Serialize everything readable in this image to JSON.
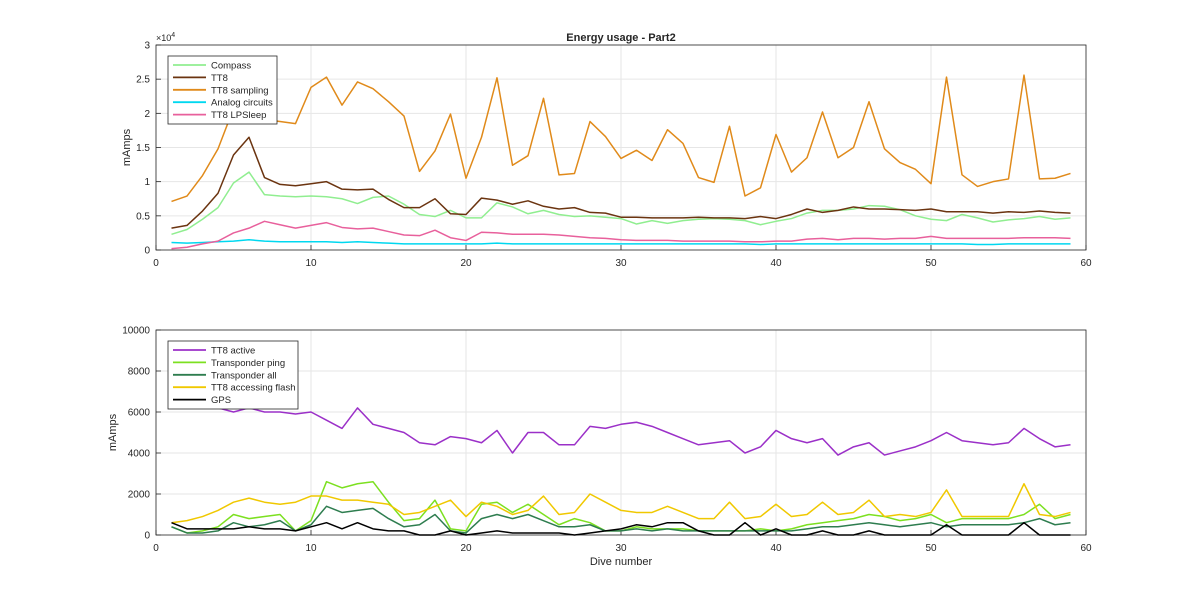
{
  "chart_data": [
    {
      "type": "line",
      "title": "Energy usage - Part2",
      "xlabel": "",
      "ylabel": "mAmps",
      "exponent_label": "×10",
      "exponent_power": "4",
      "xlim": [
        0,
        60
      ],
      "ylim": [
        0,
        30000
      ],
      "xticks": [
        0,
        10,
        20,
        30,
        40,
        50,
        60
      ],
      "yticks": [
        0,
        5000,
        10000,
        15000,
        20000,
        25000,
        30000
      ],
      "ytick_labels": [
        "0",
        "0.5",
        "1",
        "1.5",
        "2",
        "2.5",
        "3"
      ],
      "grid": true,
      "legend_position": "top-left",
      "x": [
        1,
        2,
        3,
        4,
        5,
        6,
        7,
        8,
        9,
        10,
        11,
        12,
        13,
        14,
        15,
        16,
        17,
        18,
        19,
        20,
        21,
        22,
        23,
        24,
        25,
        26,
        27,
        28,
        29,
        30,
        31,
        32,
        33,
        34,
        35,
        36,
        37,
        38,
        39,
        40,
        41,
        42,
        43,
        44,
        45,
        46,
        47,
        48,
        49,
        50,
        51,
        52,
        53,
        54,
        55,
        56,
        57,
        58,
        59
      ],
      "series": [
        {
          "name": "Compass",
          "color": "#90EE90",
          "values": [
            2300,
            3000,
            4500,
            6200,
            9800,
            11400,
            8100,
            7900,
            7800,
            7900,
            7800,
            7500,
            6800,
            7700,
            7900,
            6700,
            5200,
            4900,
            5800,
            4700,
            4700,
            6900,
            6300,
            5300,
            5800,
            5200,
            4900,
            5000,
            4800,
            4600,
            3800,
            4300,
            3900,
            4300,
            4500,
            4600,
            4500,
            4300,
            3700,
            4200,
            4600,
            5400,
            5800,
            5800,
            6000,
            6500,
            6400,
            5900,
            5000,
            4500,
            4300,
            5200,
            4700,
            4100,
            4400,
            4600,
            4900,
            4500,
            4700
          ]
        },
        {
          "name": "TT8",
          "color": "#6B3410",
          "values": [
            3200,
            3600,
            5700,
            8300,
            13900,
            16500,
            10600,
            9600,
            9400,
            9700,
            10000,
            8900,
            8800,
            8900,
            7400,
            6200,
            6200,
            7500,
            5300,
            5200,
            7600,
            7300,
            6700,
            7200,
            6400,
            6000,
            6200,
            5500,
            5400,
            4800,
            4800,
            4700,
            4700,
            4700,
            4800,
            4700,
            4700,
            4600,
            4900,
            4600,
            5200,
            6000,
            5500,
            5800,
            6300,
            6000,
            6000,
            5900,
            5800,
            6000,
            5600,
            5600,
            5600,
            5400,
            5600,
            5500,
            5700,
            5500,
            5400
          ]
        },
        {
          "name": "TT8 sampling",
          "color": "#E08A1A",
          "values": [
            7100,
            7900,
            10900,
            14800,
            20700,
            20100,
            19100,
            18800,
            18500,
            23800,
            25300,
            21200,
            24600,
            23600,
            21700,
            19600,
            11500,
            14500,
            19900,
            10500,
            16500,
            25200,
            12400,
            13800,
            22200,
            11000,
            11200,
            18800,
            16600,
            13400,
            14600,
            13100,
            17600,
            15600,
            10600,
            9900,
            18100,
            7900,
            9100,
            16900,
            11400,
            13500,
            20200,
            13500,
            15000,
            21700,
            14800,
            12800,
            11800,
            9700,
            25300,
            11000,
            9300,
            10000,
            10400,
            25600,
            10400,
            10500,
            11200
          ]
        },
        {
          "name": "Analog circuits",
          "color": "#00D8F0",
          "values": [
            1100,
            1000,
            1100,
            1200,
            1300,
            1500,
            1300,
            1200,
            1200,
            1200,
            1200,
            1100,
            1200,
            1100,
            1000,
            900,
            900,
            900,
            900,
            900,
            900,
            1000,
            900,
            900,
            900,
            900,
            900,
            900,
            900,
            900,
            900,
            900,
            900,
            900,
            900,
            900,
            900,
            900,
            800,
            900,
            900,
            900,
            900,
            900,
            900,
            900,
            900,
            900,
            900,
            900,
            900,
            900,
            800,
            800,
            900,
            900,
            900,
            900,
            900
          ]
        },
        {
          "name": "TT8 LPSleep",
          "color": "#E8609C",
          "values": [
            200,
            400,
            900,
            1300,
            2500,
            3200,
            4200,
            3700,
            3200,
            3600,
            4000,
            3300,
            3100,
            3200,
            2700,
            2200,
            2100,
            2900,
            1800,
            1400,
            2600,
            2500,
            2300,
            2300,
            2300,
            2200,
            2000,
            1800,
            1700,
            1500,
            1400,
            1400,
            1400,
            1300,
            1300,
            1300,
            1300,
            1200,
            1200,
            1300,
            1300,
            1600,
            1700,
            1500,
            1700,
            1700,
            1600,
            1700,
            1700,
            2000,
            1700,
            1700,
            1700,
            1700,
            1700,
            1800,
            1800,
            1800,
            1700
          ]
        }
      ]
    },
    {
      "type": "line",
      "title": "",
      "xlabel": "Dive number",
      "ylabel": "mAmps",
      "xlim": [
        0,
        60
      ],
      "ylim": [
        0,
        10000
      ],
      "xticks": [
        0,
        10,
        20,
        30,
        40,
        50,
        60
      ],
      "yticks": [
        0,
        2000,
        4000,
        6000,
        8000,
        10000
      ],
      "ytick_labels": [
        "0",
        "2000",
        "4000",
        "6000",
        "8000",
        "10000"
      ],
      "grid": true,
      "legend_position": "top-left",
      "x": [
        1,
        2,
        3,
        4,
        5,
        6,
        7,
        8,
        9,
        10,
        11,
        12,
        13,
        14,
        15,
        16,
        17,
        18,
        19,
        20,
        21,
        22,
        23,
        24,
        25,
        26,
        27,
        28,
        29,
        30,
        31,
        32,
        33,
        34,
        35,
        36,
        37,
        38,
        39,
        40,
        41,
        42,
        43,
        44,
        45,
        46,
        47,
        48,
        49,
        50,
        51,
        52,
        53,
        54,
        55,
        56,
        57,
        58,
        59
      ],
      "series": [
        {
          "name": "TT8 active",
          "color": "#9B30C8",
          "values": [
            6300,
            6200,
            6600,
            6200,
            6000,
            6200,
            6000,
            6000,
            5900,
            6000,
            5600,
            5200,
            6200,
            5400,
            5200,
            5000,
            4500,
            4400,
            4800,
            4700,
            4500,
            5100,
            4000,
            5000,
            5000,
            4400,
            4400,
            5300,
            5200,
            5400,
            5500,
            5300,
            5000,
            4700,
            4400,
            4500,
            4600,
            4000,
            4300,
            5100,
            4700,
            4500,
            4700,
            3900,
            4300,
            4500,
            3900,
            4100,
            4300,
            4600,
            5000,
            4600,
            4500,
            4400,
            4500,
            5200,
            4700,
            4300,
            4400
          ]
        },
        {
          "name": "Transponder ping",
          "color": "#7CE020",
          "values": [
            400,
            100,
            200,
            400,
            1000,
            800,
            900,
            1000,
            200,
            700,
            2600,
            2300,
            2500,
            2600,
            1600,
            700,
            800,
            1700,
            300,
            200,
            1500,
            1600,
            1100,
            1500,
            1000,
            500,
            800,
            600,
            200,
            200,
            400,
            300,
            300,
            300,
            200,
            200,
            200,
            200,
            300,
            200,
            300,
            500,
            600,
            700,
            800,
            1000,
            900,
            700,
            800,
            1000,
            600,
            800,
            800,
            800,
            800,
            1000,
            1500,
            800,
            1000
          ]
        },
        {
          "name": "Transponder all",
          "color": "#2E7D4F",
          "values": [
            400,
            100,
            100,
            200,
            600,
            400,
            500,
            700,
            200,
            500,
            1400,
            1100,
            1200,
            1300,
            800,
            400,
            500,
            1000,
            200,
            100,
            800,
            1000,
            800,
            1000,
            700,
            400,
            400,
            500,
            200,
            200,
            300,
            200,
            300,
            200,
            200,
            200,
            200,
            200,
            200,
            200,
            200,
            300,
            400,
            400,
            500,
            600,
            500,
            400,
            500,
            600,
            400,
            500,
            500,
            500,
            500,
            600,
            800,
            500,
            600
          ]
        },
        {
          "name": "TT8 accessing flash",
          "color": "#F0C800",
          "values": [
            600,
            700,
            900,
            1200,
            1600,
            1800,
            1600,
            1500,
            1600,
            1900,
            1900,
            1700,
            1700,
            1600,
            1500,
            1000,
            1100,
            1400,
            1700,
            900,
            1600,
            1400,
            1000,
            1200,
            1900,
            1000,
            1100,
            2000,
            1600,
            1200,
            1100,
            1100,
            1400,
            1100,
            800,
            800,
            1600,
            800,
            900,
            1500,
            900,
            1000,
            1600,
            1000,
            1100,
            1700,
            900,
            1000,
            900,
            1100,
            2200,
            900,
            900,
            900,
            900,
            2500,
            1000,
            900,
            1100
          ]
        },
        {
          "name": "GPS",
          "color": "#000000",
          "values": [
            600,
            300,
            300,
            300,
            300,
            400,
            300,
            300,
            200,
            400,
            600,
            300,
            600,
            300,
            200,
            200,
            0,
            0,
            200,
            0,
            100,
            200,
            100,
            100,
            100,
            100,
            0,
            100,
            200,
            300,
            500,
            400,
            600,
            600,
            200,
            0,
            0,
            600,
            0,
            300,
            0,
            0,
            200,
            0,
            0,
            200,
            0,
            0,
            0,
            0,
            500,
            0,
            0,
            0,
            0,
            600,
            0,
            0,
            0
          ]
        }
      ]
    }
  ]
}
